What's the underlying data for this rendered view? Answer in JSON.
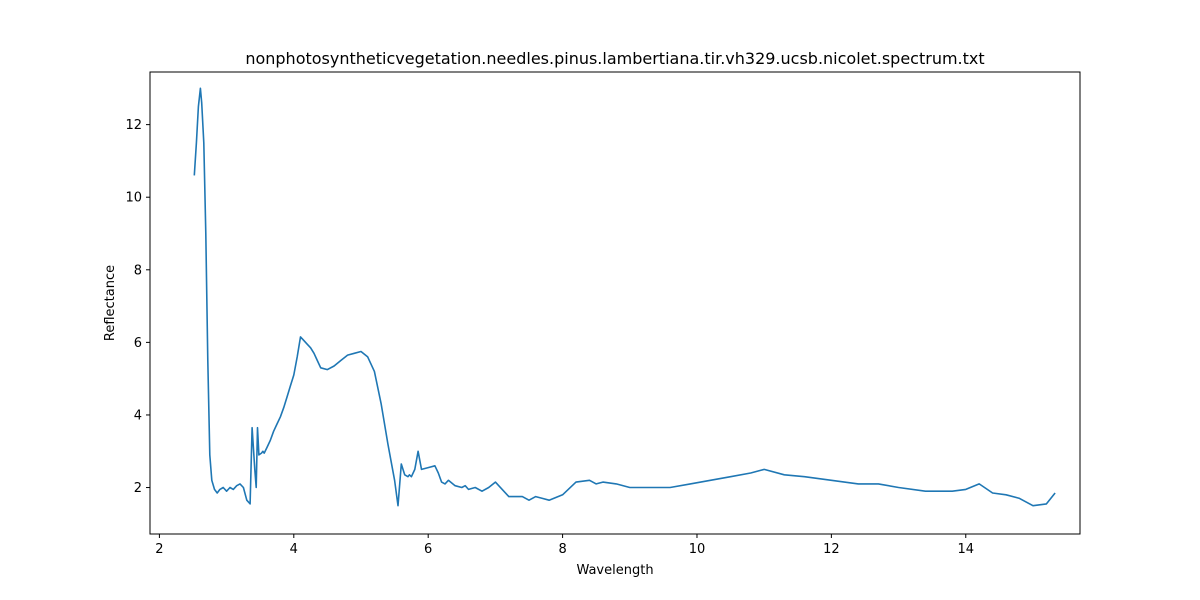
{
  "chart_data": {
    "type": "line",
    "title": "nonphotosyntheticvegetation.needles.pinus.lambertiana.tir.vh329.ucsb.nicolet.spectrum.txt",
    "xlabel": "Wavelength",
    "ylabel": "Reflectance",
    "xlim": [
      1.86,
      15.7
    ],
    "ylim": [
      0.72,
      13.45
    ],
    "xticks": [
      2,
      4,
      6,
      8,
      10,
      12,
      14
    ],
    "yticks": [
      2,
      4,
      6,
      8,
      10,
      12
    ],
    "grid": false,
    "series": [
      {
        "color": "#1f77b4",
        "x": [
          2.52,
          2.55,
          2.58,
          2.61,
          2.63,
          2.66,
          2.69,
          2.72,
          2.75,
          2.78,
          2.82,
          2.86,
          2.9,
          2.95,
          3.0,
          3.05,
          3.1,
          3.15,
          3.2,
          3.25,
          3.3,
          3.35,
          3.38,
          3.42,
          3.44,
          3.46,
          3.48,
          3.52,
          3.54,
          3.56,
          3.6,
          3.65,
          3.7,
          3.75,
          3.8,
          3.85,
          3.9,
          3.95,
          4.0,
          4.05,
          4.1,
          4.15,
          4.2,
          4.25,
          4.3,
          4.35,
          4.4,
          4.5,
          4.6,
          4.7,
          4.8,
          4.9,
          5.0,
          5.1,
          5.2,
          5.3,
          5.4,
          5.5,
          5.55,
          5.6,
          5.65,
          5.7,
          5.72,
          5.75,
          5.8,
          5.85,
          5.9,
          6.0,
          6.1,
          6.15,
          6.2,
          6.25,
          6.3,
          6.4,
          6.5,
          6.55,
          6.6,
          6.7,
          6.8,
          6.9,
          7.0,
          7.2,
          7.4,
          7.5,
          7.6,
          7.7,
          7.8,
          8.0,
          8.2,
          8.4,
          8.5,
          8.6,
          8.8,
          9.0,
          9.3,
          9.6,
          9.9,
          10.2,
          10.5,
          10.8,
          11.0,
          11.3,
          11.6,
          12.0,
          12.4,
          12.7,
          13.0,
          13.4,
          13.8,
          14.0,
          14.2,
          14.4,
          14.6,
          14.8,
          15.0,
          15.2,
          15.33
        ],
        "values": [
          10.6,
          11.5,
          12.5,
          13.0,
          12.6,
          11.5,
          9.0,
          5.5,
          2.9,
          2.2,
          1.95,
          1.85,
          1.95,
          2.0,
          1.9,
          2.0,
          1.95,
          2.05,
          2.1,
          2.0,
          1.65,
          1.55,
          3.65,
          2.5,
          2.0,
          3.65,
          2.9,
          2.95,
          3.0,
          2.95,
          3.1,
          3.3,
          3.55,
          3.75,
          3.95,
          4.2,
          4.5,
          4.8,
          5.1,
          5.6,
          6.15,
          6.05,
          5.95,
          5.85,
          5.7,
          5.5,
          5.3,
          5.25,
          5.35,
          5.5,
          5.65,
          5.7,
          5.75,
          5.6,
          5.2,
          4.3,
          3.2,
          2.2,
          1.5,
          2.65,
          2.35,
          2.3,
          2.35,
          2.3,
          2.5,
          3.0,
          2.5,
          2.55,
          2.6,
          2.4,
          2.15,
          2.1,
          2.2,
          2.05,
          2.0,
          2.05,
          1.95,
          2.0,
          1.9,
          2.0,
          2.15,
          1.75,
          1.75,
          1.65,
          1.75,
          1.7,
          1.65,
          1.8,
          2.15,
          2.2,
          2.1,
          2.15,
          2.1,
          2.0,
          2.0,
          2.0,
          2.1,
          2.2,
          2.3,
          2.4,
          2.5,
          2.35,
          2.3,
          2.2,
          2.1,
          2.1,
          2.0,
          1.9,
          1.9,
          1.95,
          2.1,
          1.85,
          1.8,
          1.7,
          1.5,
          1.55,
          1.85
        ]
      }
    ]
  }
}
